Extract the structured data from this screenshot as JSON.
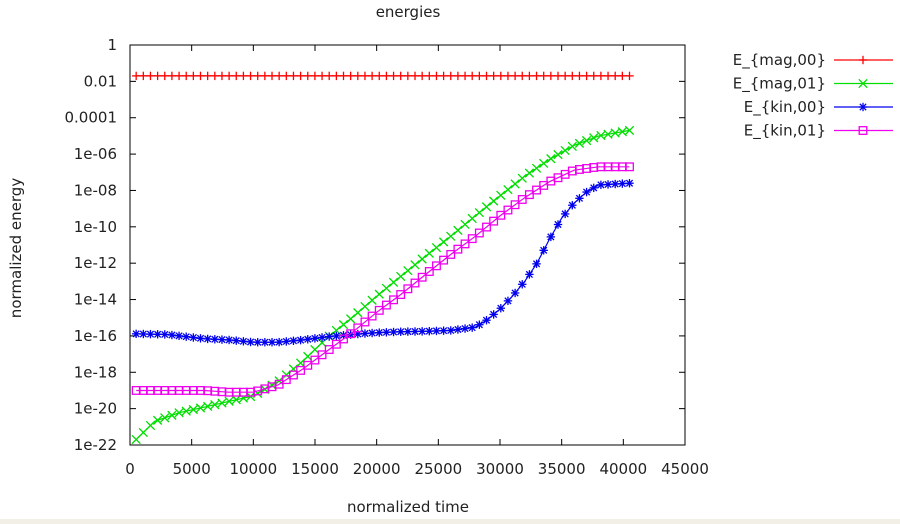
{
  "chart_data": {
    "type": "line",
    "title": "energies",
    "xlabel": "normalized time",
    "ylabel": "normalized energy",
    "xlim": [
      0,
      45000
    ],
    "ylim": [
      1e-22,
      1
    ],
    "y_scale": "log",
    "grid": false,
    "legend_position": "outside-right-top",
    "x_ticks": [
      "0",
      "5000",
      "10000",
      "15000",
      "20000",
      "25000",
      "30000",
      "35000",
      "40000",
      "45000"
    ],
    "y_ticks": [
      "1",
      "0.01",
      "0.0001",
      "1e-06",
      "1e-08",
      "1e-10",
      "1e-12",
      "1e-14",
      "1e-16",
      "1e-18",
      "1e-20",
      "1e-22"
    ],
    "series": [
      {
        "name": "E_{mag,00}",
        "color": "#ff0000",
        "marker": "plus",
        "points": [
          [
            500,
            0.02
          ],
          [
            5000,
            0.02
          ],
          [
            10000,
            0.02
          ],
          [
            15000,
            0.02
          ],
          [
            20000,
            0.02
          ],
          [
            25000,
            0.02
          ],
          [
            30000,
            0.02
          ],
          [
            35000,
            0.02
          ],
          [
            40500,
            0.02
          ]
        ]
      },
      {
        "name": "E_{mag,01}",
        "color": "#00dd00",
        "marker": "cross",
        "points": [
          [
            500,
            2e-22
          ],
          [
            2000,
            2e-21
          ],
          [
            4000,
            6e-21
          ],
          [
            6000,
            1.2e-20
          ],
          [
            8000,
            2.5e-20
          ],
          [
            10000,
            5e-20
          ],
          [
            12000,
            3e-19
          ],
          [
            14000,
            4e-18
          ],
          [
            16000,
            8e-17
          ],
          [
            18000,
            1e-15
          ],
          [
            20000,
            1.5e-14
          ],
          [
            22000,
            2e-13
          ],
          [
            24000,
            2.5e-12
          ],
          [
            26000,
            3e-11
          ],
          [
            28000,
            4e-10
          ],
          [
            30000,
            5e-09
          ],
          [
            32000,
            6e-08
          ],
          [
            34000,
            5e-07
          ],
          [
            36000,
            3e-06
          ],
          [
            38000,
            1e-05
          ],
          [
            40500,
            2e-05
          ]
        ]
      },
      {
        "name": "E_{kin,00}",
        "color": "#0000ee",
        "marker": "star",
        "points": [
          [
            500,
            1.3e-16
          ],
          [
            3000,
            1.2e-16
          ],
          [
            6000,
            7e-17
          ],
          [
            8000,
            6e-17
          ],
          [
            10000,
            4.5e-17
          ],
          [
            12000,
            4.5e-17
          ],
          [
            14000,
            6e-17
          ],
          [
            16000,
            9e-17
          ],
          [
            18000,
            1.2e-16
          ],
          [
            20000,
            1.5e-16
          ],
          [
            22000,
            1.7e-16
          ],
          [
            24000,
            1.8e-16
          ],
          [
            26000,
            2e-16
          ],
          [
            28000,
            3e-16
          ],
          [
            29000,
            8e-16
          ],
          [
            30000,
            3e-15
          ],
          [
            31000,
            1.5e-14
          ],
          [
            32000,
            1e-13
          ],
          [
            33000,
            1e-12
          ],
          [
            34000,
            2e-11
          ],
          [
            35000,
            3e-10
          ],
          [
            36000,
            2e-09
          ],
          [
            37000,
            8e-09
          ],
          [
            38000,
            2e-08
          ],
          [
            40500,
            2.5e-08
          ]
        ]
      },
      {
        "name": "E_{kin,01}",
        "color": "#ee00ee",
        "marker": "square",
        "points": [
          [
            500,
            1e-19
          ],
          [
            3000,
            1e-19
          ],
          [
            6000,
            1e-19
          ],
          [
            8000,
            8e-20
          ],
          [
            10000,
            8e-20
          ],
          [
            12000,
            2e-19
          ],
          [
            14000,
            1.5e-18
          ],
          [
            16000,
            1.5e-17
          ],
          [
            18000,
            1.5e-16
          ],
          [
            20000,
            2e-15
          ],
          [
            22000,
            2e-14
          ],
          [
            24000,
            2.5e-13
          ],
          [
            26000,
            3e-12
          ],
          [
            28000,
            3e-11
          ],
          [
            30000,
            4e-10
          ],
          [
            32000,
            4e-09
          ],
          [
            34000,
            3e-08
          ],
          [
            36000,
            1.3e-07
          ],
          [
            38000,
            2e-07
          ],
          [
            40500,
            2e-07
          ]
        ]
      }
    ]
  }
}
